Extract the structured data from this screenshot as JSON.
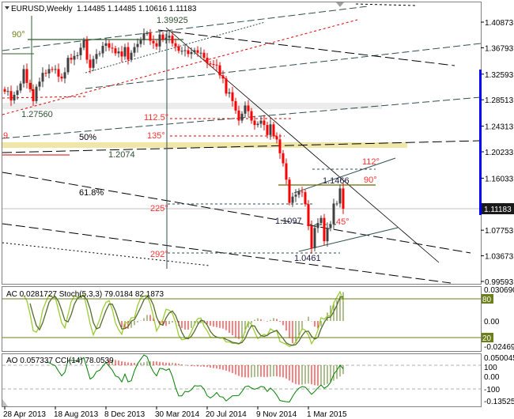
{
  "header": {
    "symbol": "EURUSD,Weekly",
    "ohlc": "1.14485 1.14485 1.10616 1.11183"
  },
  "colors": {
    "bull": "#404040",
    "bear": "#ff0000",
    "stoch_main": "#9acd32",
    "stoch_signal": "#556b2f",
    "osc_up": "#5f7f1f",
    "osc_down": "#ff0000",
    "cci": "#008000",
    "level_box": "#6b7f1a",
    "price_marker": "#0000ff"
  },
  "annotations": {
    "high_1": "1.39925",
    "angle_90_left": "90°",
    "low_1": "1.27560",
    "angle_112_5": "112.5°",
    "angle_135": "135°",
    "nine": "9",
    "fib_50": "50%",
    "level_12074": "1.2074",
    "fib_618": "61.8%",
    "angle_225": "225°",
    "angle_292": "292°",
    "low_11097": "1.1097",
    "low_10461": "1.0461",
    "high_11466": "1.1466",
    "angle_112": "112°",
    "angle_90_right": "90°",
    "angle_45": "45°"
  },
  "price_axis": [
    "1.40873",
    "1.36793",
    "1.32593",
    "1.28513",
    "1.24313",
    "1.20233",
    "1.16033",
    "1.07753",
    "1.03673",
    "0.99593"
  ],
  "current_price": "1.11183",
  "ac_panel": {
    "title": "AC 0.0281727  Stoch(5,3,3) 79.0184 82.1873",
    "axis_top": "0.030690",
    "axis_zero": "0.00",
    "axis_bottom": "-0.024699",
    "level_80": "80",
    "level_20": "20"
  },
  "ao_panel": {
    "title": "AO 0.057337  CCI(14) 78.0539",
    "axis_top": "0.050045",
    "axis_100": "100",
    "axis_zero": "0.00",
    "axis_m100": "-100",
    "axis_bottom": "-0.135252"
  },
  "time_axis": [
    "28 Apr 2013",
    "18 Aug 2013",
    "8 Dec 2013",
    "30 Mar 2014",
    "20 Jul 2014",
    "9 Nov 2014",
    "1 Mar 2015"
  ],
  "chart_data": {
    "type": "candlestick",
    "title": "EURUSD,Weekly",
    "ylim": [
      0.99593,
      1.40873
    ],
    "first_week": "28 Apr 2013",
    "closes": [
      1.298,
      1.299,
      1.284,
      1.293,
      1.3,
      1.311,
      1.334,
      1.312,
      1.302,
      1.283,
      1.306,
      1.314,
      1.328,
      1.327,
      1.334,
      1.333,
      1.334,
      1.322,
      1.319,
      1.329,
      1.352,
      1.349,
      1.355,
      1.356,
      1.368,
      1.38,
      1.349,
      1.336,
      1.35,
      1.358,
      1.359,
      1.371,
      1.375,
      1.368,
      1.367,
      1.359,
      1.362,
      1.354,
      1.369,
      1.349,
      1.36,
      1.369,
      1.374,
      1.38,
      1.391,
      1.391,
      1.379,
      1.375,
      1.37,
      1.389,
      1.381,
      1.384,
      1.387,
      1.375,
      1.37,
      1.363,
      1.363,
      1.364,
      1.358,
      1.361,
      1.364,
      1.36,
      1.36,
      1.352,
      1.343,
      1.342,
      1.341,
      1.34,
      1.324,
      1.319,
      1.295,
      1.297,
      1.283,
      1.268,
      1.252,
      1.263,
      1.276,
      1.267,
      1.252,
      1.245,
      1.247,
      1.252,
      1.245,
      1.229,
      1.246,
      1.227,
      1.222,
      1.2,
      1.184,
      1.158,
      1.121,
      1.131,
      1.134,
      1.139,
      1.138,
      1.119,
      1.084,
      1.049,
      1.081,
      1.089,
      1.097,
      1.06,
      1.081,
      1.087,
      1.12,
      1.12,
      1.144,
      1.1118
    ],
    "indicators": [
      "AC",
      "Stoch(5,3,3)",
      "AO",
      "CCI(14)"
    ]
  }
}
